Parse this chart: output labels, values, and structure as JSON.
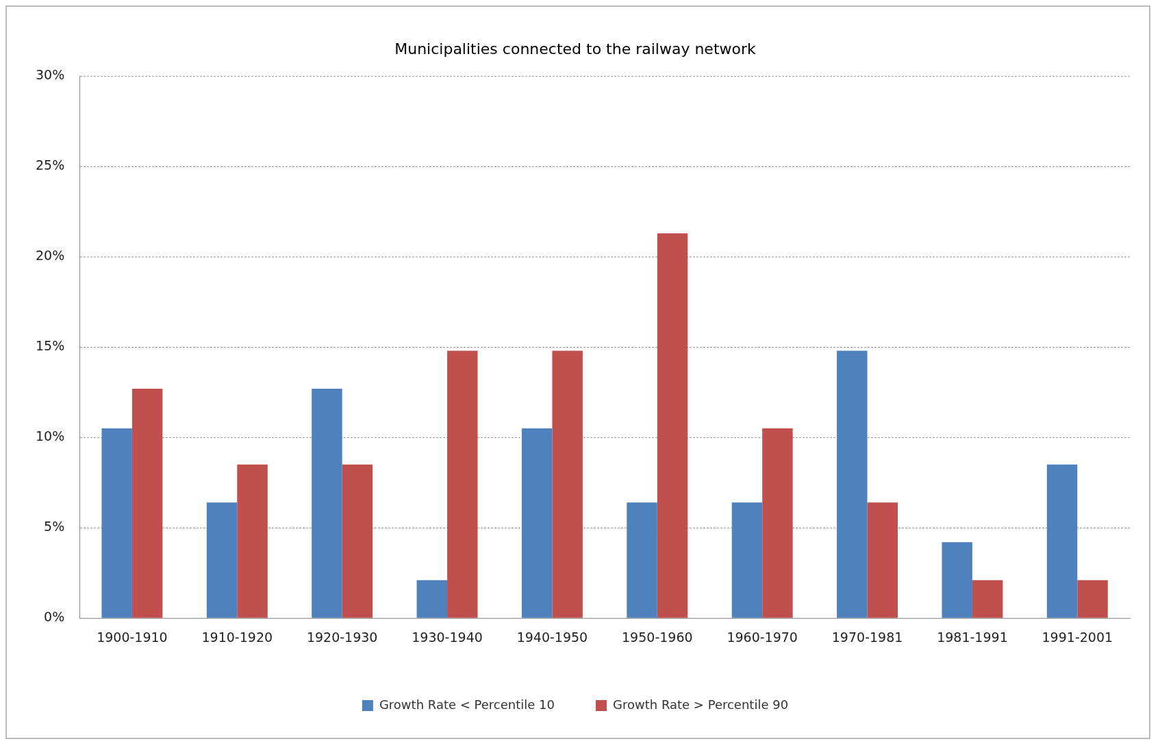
{
  "chart_data": {
    "type": "bar",
    "title": "Municipalities connected to the railway network",
    "categories": [
      "1900-1910",
      "1910-1920",
      "1920-1930",
      "1930-1940",
      "1940-1950",
      "1950-1960",
      "1960-1970",
      "1970-1981",
      "1981-1991",
      "1991-2001"
    ],
    "series": [
      {
        "name": "Growth Rate < Percentile 10",
        "color": "#4f81bd",
        "values": [
          10.5,
          6.4,
          12.7,
          2.1,
          10.5,
          6.4,
          6.4,
          14.8,
          4.2,
          8.5
        ]
      },
      {
        "name": "Growth Rate > Percentile 90",
        "color": "#c0504d",
        "values": [
          12.7,
          8.5,
          8.5,
          14.8,
          14.8,
          21.3,
          10.5,
          6.4,
          2.1,
          2.1
        ]
      }
    ],
    "ylim": [
      0,
      30
    ],
    "yticks": [
      {
        "value": 0,
        "label": "0%"
      },
      {
        "value": 5,
        "label": "5%"
      },
      {
        "value": 10,
        "label": "10%"
      },
      {
        "value": 15,
        "label": "15%"
      },
      {
        "value": 20,
        "label": "20%"
      },
      {
        "value": 25,
        "label": "25%"
      },
      {
        "value": 30,
        "label": "30%"
      }
    ],
    "grid": "y",
    "legend": "bottom"
  }
}
